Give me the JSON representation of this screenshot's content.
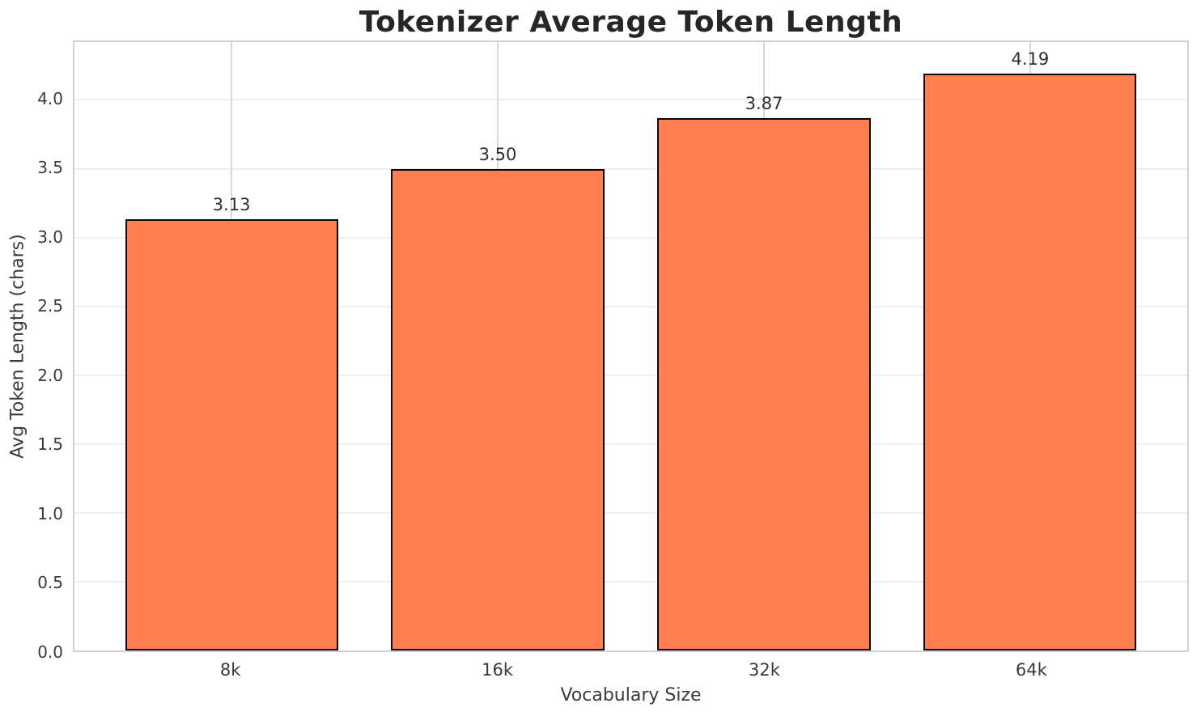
{
  "chart_data": {
    "type": "bar",
    "title": "Tokenizer Average Token Length",
    "xlabel": "Vocabulary Size",
    "ylabel": "Avg Token Length (chars)",
    "categories": [
      "8k",
      "16k",
      "32k",
      "64k"
    ],
    "values": [
      3.13,
      3.5,
      3.87,
      4.19
    ],
    "value_labels": [
      "3.13",
      "3.50",
      "3.87",
      "4.19"
    ],
    "yticks": [
      {
        "value": 0.0,
        "label": "0.0"
      },
      {
        "value": 0.5,
        "label": "0.5"
      },
      {
        "value": 1.0,
        "label": "1.0"
      },
      {
        "value": 1.5,
        "label": "1.5"
      },
      {
        "value": 2.0,
        "label": "2.0"
      },
      {
        "value": 2.5,
        "label": "2.5"
      },
      {
        "value": 3.0,
        "label": "3.0"
      },
      {
        "value": 3.5,
        "label": "3.5"
      },
      {
        "value": 4.0,
        "label": "4.0"
      }
    ],
    "ylim": [
      0,
      4.42
    ],
    "xlim": [
      -0.59,
      3.59
    ],
    "bar_width_units": 0.8,
    "grid": true,
    "legend": "none",
    "colors": {
      "bar_fill": "#FF7F50",
      "bar_edge": "#0a0a0a",
      "grid_horizontal": "#efefef",
      "grid_vertical": "#d8d8d8",
      "spine": "#d0d0d0",
      "tick_text": "#3a3a3a",
      "title_text": "#262626",
      "background": "#ffffff"
    }
  }
}
